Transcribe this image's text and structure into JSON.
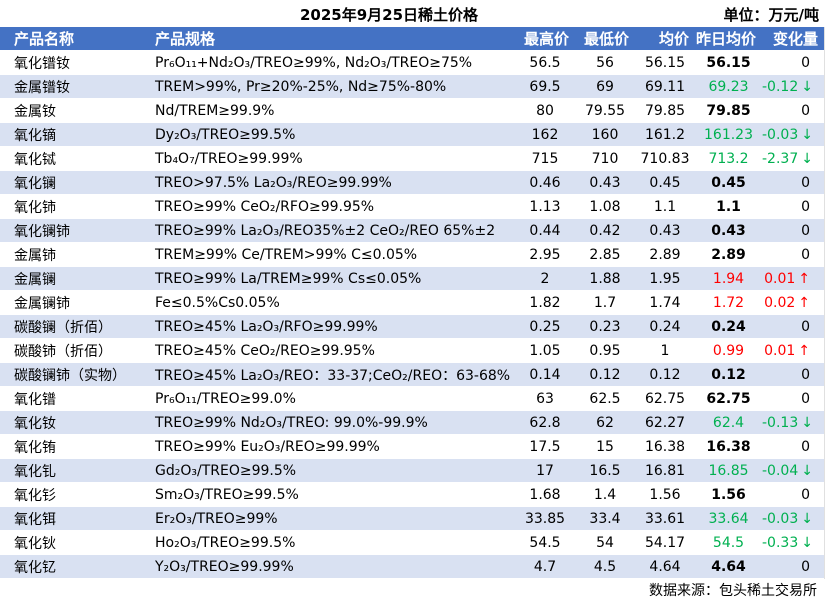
{
  "title": "2025年9月25日稀土价格",
  "unit": "单位：万元/吨",
  "headers": {
    "name": "产品名称",
    "spec": "产品规格",
    "high": "最高价",
    "low": "最低价",
    "avg": "均价",
    "yesterday": "昨日均价",
    "change": "变化量"
  },
  "colors": {
    "header_bg": "#4472c4",
    "band": "#d9e1f2",
    "down": "#00b050",
    "up": "#ff0000"
  },
  "rows": [
    {
      "name": "氧化镨钕",
      "spec": "Pr₆O₁₁+Nd₂O₃/TREO≥99%, Nd₂O₃/TREO≥75%",
      "high": "56.5",
      "low": "56",
      "avg": "56.15",
      "yesterday": "56.15",
      "change": "0",
      "trend": "flat"
    },
    {
      "name": "金属镨钕",
      "spec": "TREM>99%, Pr≥20%-25%, Nd≥75%-80%",
      "high": "69.5",
      "low": "69",
      "avg": "69.11",
      "yesterday": "69.23",
      "change": "-0.12",
      "trend": "down"
    },
    {
      "name": "金属钕",
      "spec": "Nd/TREM≥99.9%",
      "high": "80",
      "low": "79.55",
      "avg": "79.85",
      "yesterday": "79.85",
      "change": "0",
      "trend": "flat"
    },
    {
      "name": "氧化镝",
      "spec": "Dy₂O₃/TREO≥99.5%",
      "high": "162",
      "low": "160",
      "avg": "161.2",
      "yesterday": "161.23",
      "change": "-0.03",
      "trend": "down"
    },
    {
      "name": "氧化铽",
      "spec": "Tb₄O₇/TREO≥99.99%",
      "high": "715",
      "low": "710",
      "avg": "710.83",
      "yesterday": "713.2",
      "change": "-2.37",
      "trend": "down"
    },
    {
      "name": "氧化镧",
      "spec": "TREO>97.5% La₂O₃/REO≥99.99%",
      "high": "0.46",
      "low": "0.43",
      "avg": "0.45",
      "yesterday": "0.45",
      "change": "0",
      "trend": "flat"
    },
    {
      "name": "氧化铈",
      "spec": "TREO≥99% CeO₂/RFO≥99.95%",
      "high": "1.13",
      "low": "1.08",
      "avg": "1.1",
      "yesterday": "1.1",
      "change": "0",
      "trend": "flat"
    },
    {
      "name": "氧化镧铈",
      "spec": "TREO≥99% La₂O₃/REO35%±2 CeO₂/REO 65%±2",
      "high": "0.44",
      "low": "0.42",
      "avg": "0.43",
      "yesterday": "0.43",
      "change": "0",
      "trend": "flat"
    },
    {
      "name": "金属铈",
      "spec": "TREM≥99% Ce/TREM>99% C≤0.05%",
      "high": "2.95",
      "low": "2.85",
      "avg": "2.89",
      "yesterday": "2.89",
      "change": "0",
      "trend": "flat"
    },
    {
      "name": "金属镧",
      "spec": "TREO≥99% La/TREM≥99% Cs≤0.05%",
      "high": "2",
      "low": "1.88",
      "avg": "1.95",
      "yesterday": "1.94",
      "change": "0.01",
      "trend": "up"
    },
    {
      "name": "金属镧铈",
      "spec": "Fe≤0.5%Cs0.05%",
      "high": "1.82",
      "low": "1.7",
      "avg": "1.74",
      "yesterday": "1.72",
      "change": "0.02",
      "trend": "up"
    },
    {
      "name": "碳酸镧（折佰）",
      "spec": "TREO≥45% La₂O₃/RFO≥99.99%",
      "high": "0.25",
      "low": "0.23",
      "avg": "0.24",
      "yesterday": "0.24",
      "change": "0",
      "trend": "flat"
    },
    {
      "name": "碳酸铈（折佰）",
      "spec": "TREO≥45% CeO₂/REO≥99.95%",
      "high": "1.05",
      "low": "0.95",
      "avg": "1",
      "yesterday": "0.99",
      "change": "0.01",
      "trend": "up"
    },
    {
      "name": "碳酸镧铈（实物）",
      "spec": "TREO≥45% La₂O₃/REO：33-37;CeO₂/REO：63-68%",
      "high": "0.14",
      "low": "0.12",
      "avg": "0.12",
      "yesterday": "0.12",
      "change": "0",
      "trend": "flat"
    },
    {
      "name": "氧化镨",
      "spec": "Pr₆O₁₁/TREO≥99.0%",
      "high": "63",
      "low": "62.5",
      "avg": "62.75",
      "yesterday": "62.75",
      "change": "0",
      "trend": "flat"
    },
    {
      "name": "氧化钕",
      "spec": "TREO≥99% Nd₂O₃/TREO: 99.0%-99.9%",
      "high": "62.8",
      "low": "62",
      "avg": "62.27",
      "yesterday": "62.4",
      "change": "-0.13",
      "trend": "down"
    },
    {
      "name": "氧化铕",
      "spec": "TREO≥99% Eu₂O₃/REO≥99.99%",
      "high": "17.5",
      "low": "15",
      "avg": "16.38",
      "yesterday": "16.38",
      "change": "0",
      "trend": "flat"
    },
    {
      "name": "氧化钆",
      "spec": "Gd₂O₃/TREO≥99.5%",
      "high": "17",
      "low": "16.5",
      "avg": "16.81",
      "yesterday": "16.85",
      "change": "-0.04",
      "trend": "down"
    },
    {
      "name": "氧化钐",
      "spec": "Sm₂O₃/TREO≥99.5%",
      "high": "1.68",
      "low": "1.4",
      "avg": "1.56",
      "yesterday": "1.56",
      "change": "0",
      "trend": "flat"
    },
    {
      "name": "氧化铒",
      "spec": "Er₂O₃/TREO≥99%",
      "high": "33.85",
      "low": "33.4",
      "avg": "33.61",
      "yesterday": "33.64",
      "change": "-0.03",
      "trend": "down"
    },
    {
      "name": "氧化钬",
      "spec": "Ho₂O₃/TREO≥99.5%",
      "high": "54.5",
      "low": "54",
      "avg": "54.17",
      "yesterday": "54.5",
      "change": "-0.33",
      "trend": "down"
    },
    {
      "name": "氧化钇",
      "spec": "Y₂O₃/TREO≥99.99%",
      "high": "4.7",
      "low": "4.5",
      "avg": "4.64",
      "yesterday": "4.64",
      "change": "0",
      "trend": "flat"
    }
  ],
  "arrows": {
    "down": "↓",
    "up": "↑"
  },
  "source": "数据来源：包头稀土交易所"
}
